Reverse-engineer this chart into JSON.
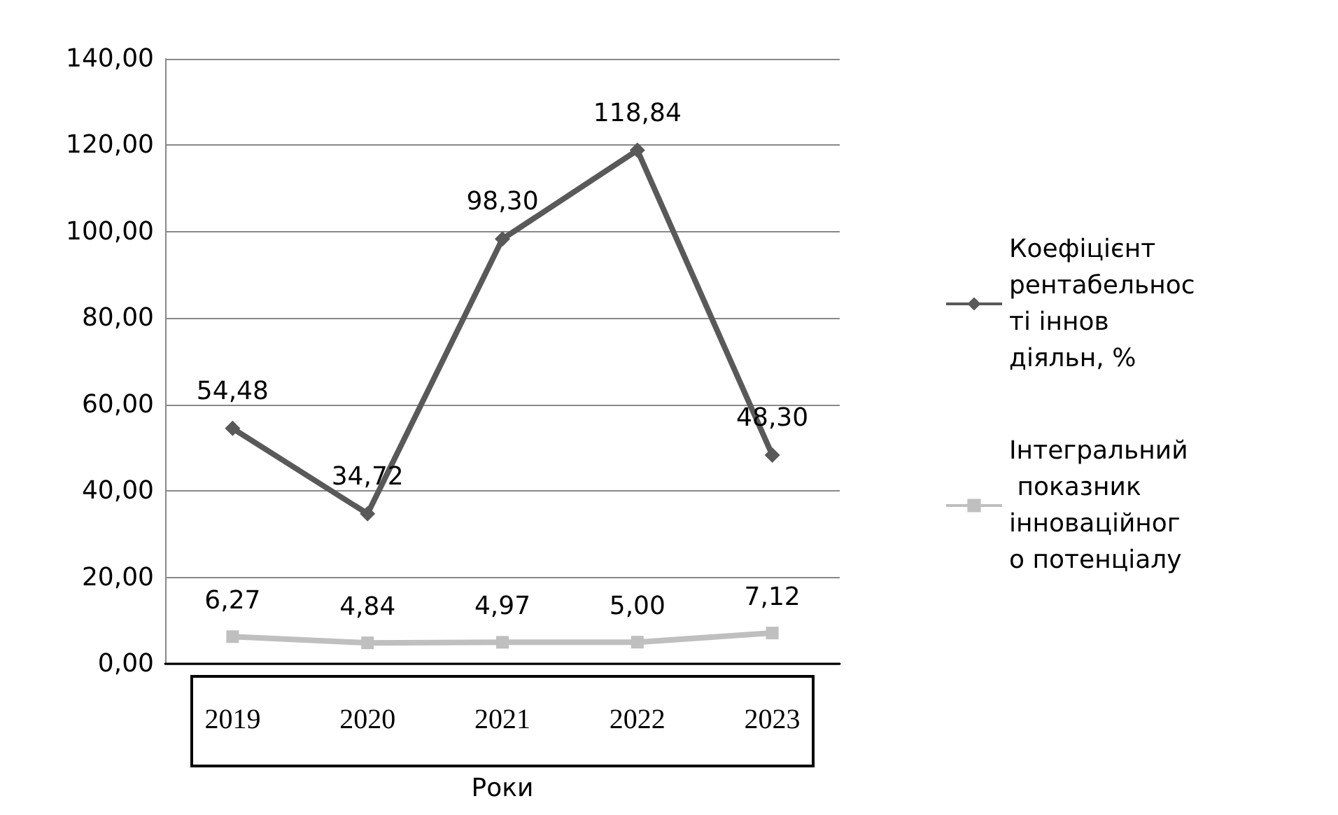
{
  "chart_data": {
    "type": "line",
    "xlabel": "Роки",
    "categories": [
      "2019",
      "2020",
      "2021",
      "2022",
      "2023"
    ],
    "series": [
      {
        "name": "Коефіцієнт рентабельності іннов діяльн, %",
        "color": "#595959",
        "marker": "diamond",
        "values": [
          54.48,
          34.72,
          98.3,
          118.84,
          48.3
        ],
        "value_labels": [
          "54,48",
          "34,72",
          "98,30",
          "118,84",
          "48,30"
        ]
      },
      {
        "name": "Інтегральний показник інноваційного потенціалу",
        "color": "#bfbfbf",
        "marker": "square",
        "values": [
          6.27,
          4.84,
          4.97,
          5.0,
          7.12
        ],
        "value_labels": [
          "6,27",
          "4,84",
          "4,97",
          "5,00",
          "7,12"
        ]
      }
    ],
    "ylim": [
      0,
      140
    ],
    "yticks": [
      {
        "value": 0,
        "label": "0,00"
      },
      {
        "value": 20,
        "label": "20,00"
      },
      {
        "value": 40,
        "label": "40,00"
      },
      {
        "value": 60,
        "label": "60,00"
      },
      {
        "value": 80,
        "label": "80,00"
      },
      {
        "value": 100,
        "label": "100,00"
      },
      {
        "value": 120,
        "label": "120,00"
      },
      {
        "value": 140,
        "label": "140,00"
      }
    ],
    "grid": "y",
    "legend": "right"
  }
}
